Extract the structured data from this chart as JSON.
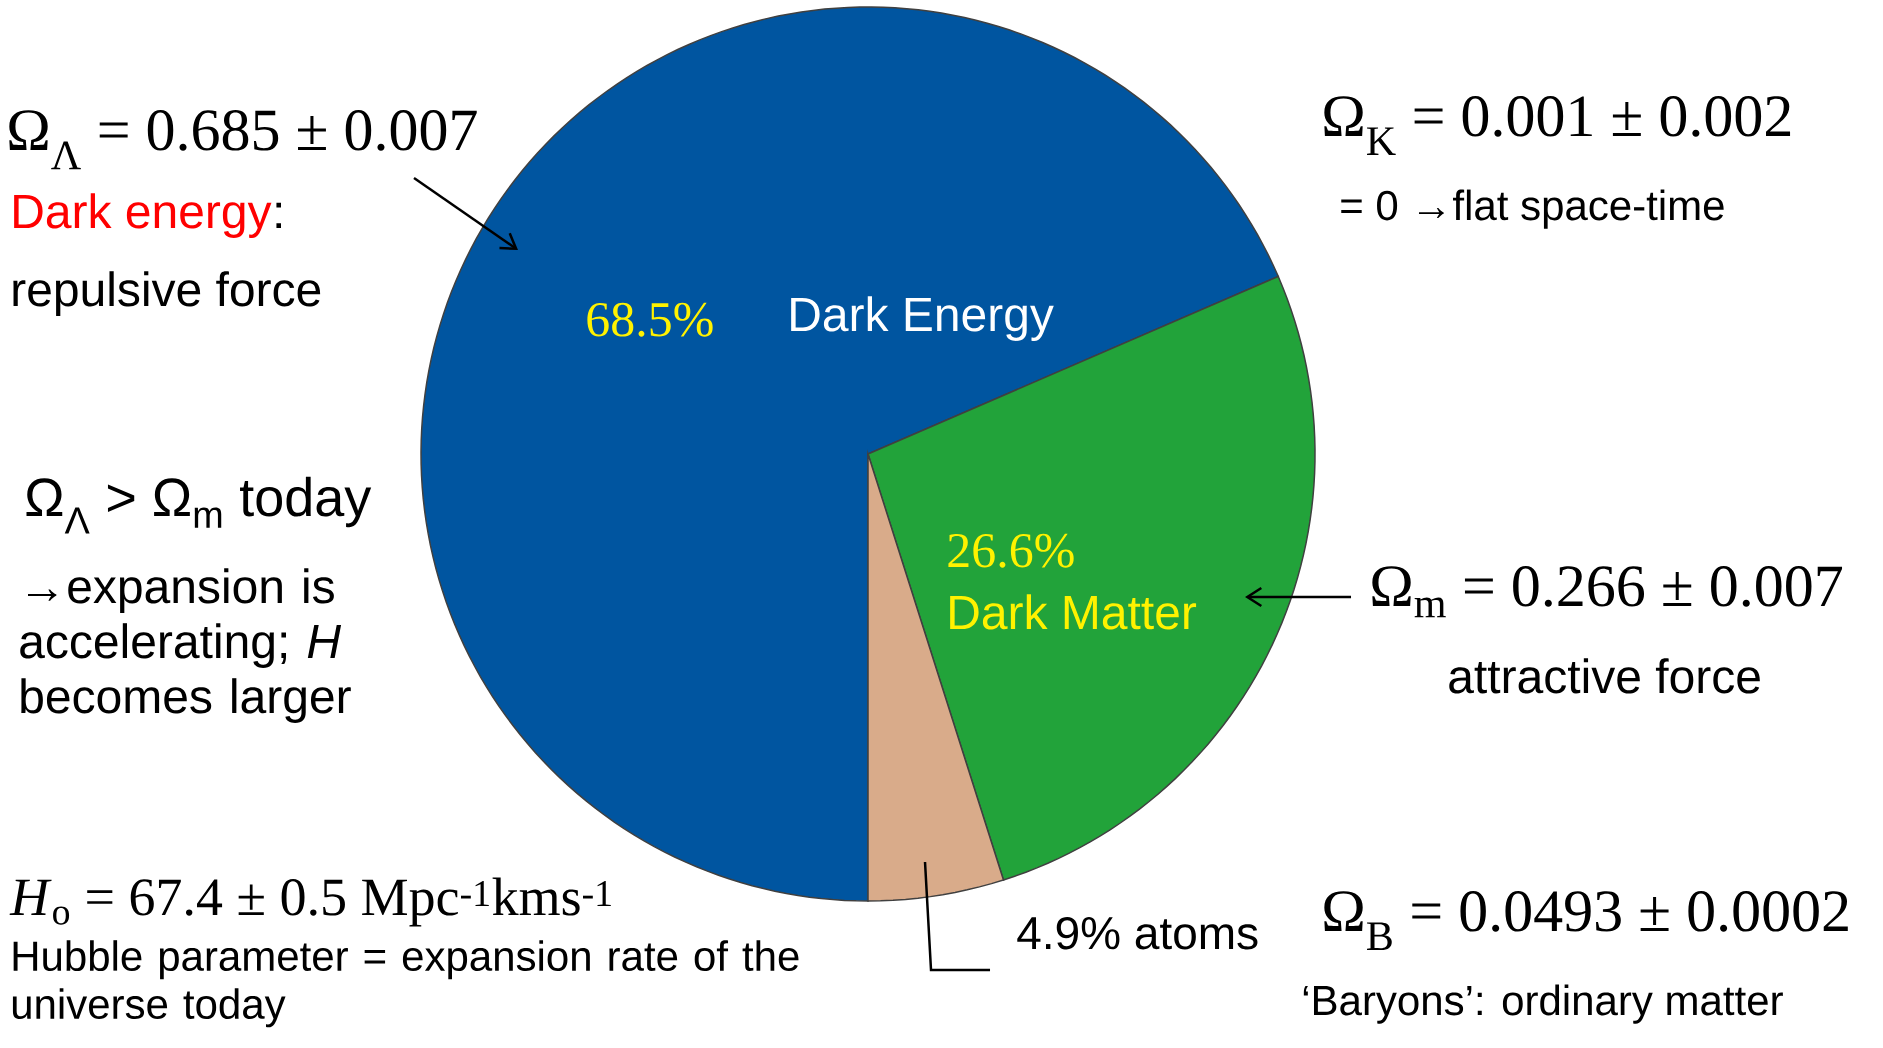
{
  "chart_data": {
    "type": "pie",
    "categories": [
      "Dark Energy",
      "Dark Matter",
      "atoms"
    ],
    "values": [
      68.5,
      26.6,
      4.9
    ],
    "colors": [
      "#0055a0",
      "#22a33a",
      "#d9ab8a"
    ],
    "value_labels": [
      "68.5%",
      "26.6%",
      "4.9%"
    ],
    "annotations": [
      "Ω$_{Λ}$ = 0.685 ± 0.007",
      "Dark energy",
      ":",
      "repulsive force",
      "Ω$_{K}$ = 0.001 ± 0.002",
      "= 0 →flat space-time",
      "Ω$_{Λ}$ > Ω$_{m}$ today",
      "→expansion is accelerating; *H* becomes larger",
      "Ω$_{m}$ = 0.266 ± 0.007",
      "attractive force",
      "*H*$_{o}$ = 67.4 ± 0.5 Mpc$^{-1}$kms$^{-1}$",
      "Hubble parameter = expansion rate of the universe today",
      "Ω$_{B}$ = 0.0493 ± 0.0002",
      "‘Baryons’: ordinary matter"
    ]
  }
}
